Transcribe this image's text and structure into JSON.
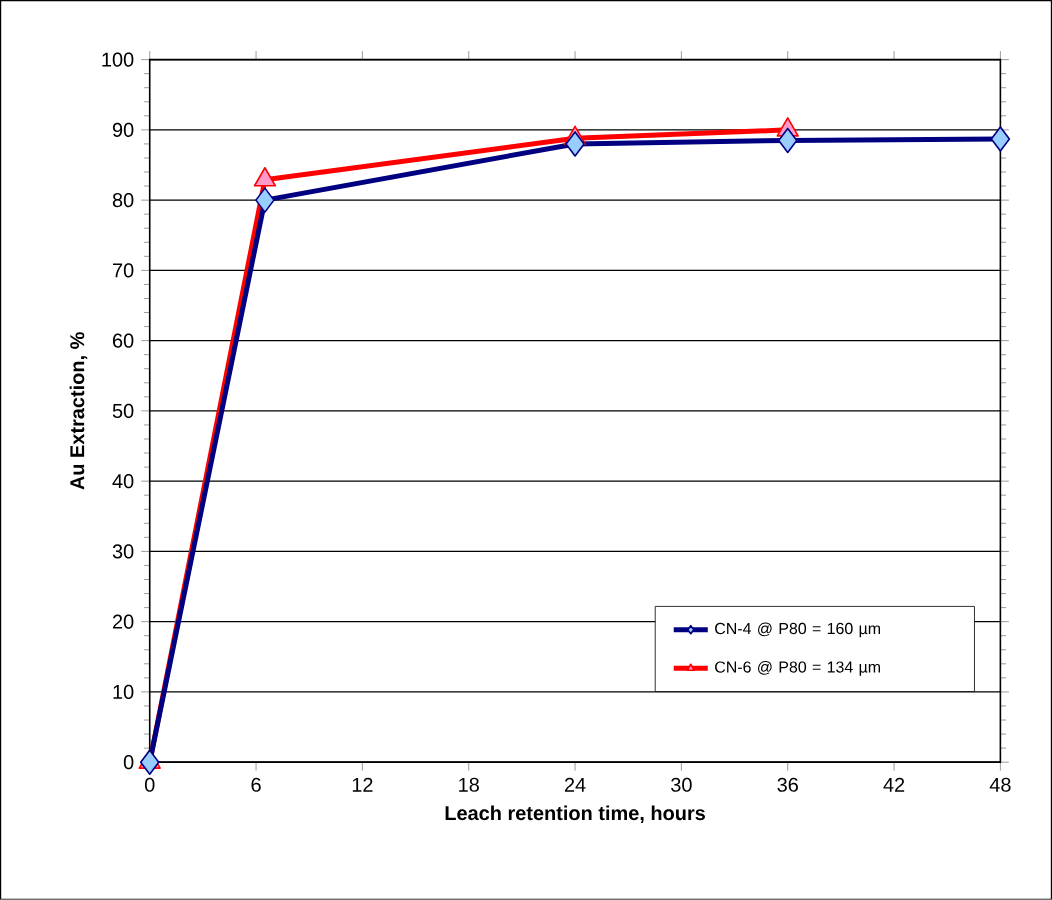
{
  "chart_data": {
    "type": "line",
    "xlabel": "Leach retention time, hours",
    "ylabel": "Au Extraction, %",
    "xlim": [
      0,
      48
    ],
    "xticks": [
      0,
      6,
      12,
      18,
      24,
      30,
      36,
      42,
      48
    ],
    "ylim": [
      0,
      100
    ],
    "yticks": [
      0,
      10,
      20,
      30,
      40,
      50,
      60,
      70,
      80,
      90,
      100
    ],
    "grid": "y",
    "legend": "bottom right",
    "line_style": "solid",
    "series": [
      {
        "name": "CN-4 @ P80 = 160 µm",
        "color": "#000080",
        "marker": "diamond",
        "x": [
          0,
          6.5,
          24,
          36,
          48
        ],
        "values": [
          0,
          80,
          88,
          88.5,
          88.7
        ]
      },
      {
        "name": "CN-6 @ P80 = 134 µm",
        "color": "#ff0000",
        "marker": "triangle",
        "x": [
          0,
          6.5,
          24,
          36
        ],
        "values": [
          0,
          82.9,
          88.8,
          90
        ]
      }
    ]
  }
}
